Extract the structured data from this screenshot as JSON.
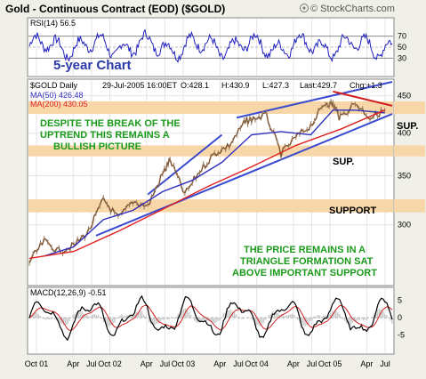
{
  "header": {
    "title": "Gold - Continuous Contract (EOD) ($GOLD)",
    "brand": "© StockCharts.com",
    "brand_icon": "bullhorn-icon"
  },
  "chart_data": [
    {
      "panel": "rsi",
      "type": "line",
      "label": "RSI(14) 56.5",
      "ylim": [
        0,
        100
      ],
      "ticks": [
        30,
        50,
        70
      ],
      "overbought": 70,
      "oversold": 30,
      "note": "5-year Chart",
      "last": 56.5,
      "color": "#2020c0"
    },
    {
      "panel": "price",
      "type": "line",
      "scale": "log",
      "info": {
        "symbol": "$GOLD Daily",
        "date": "29-Jul-2005 16:00ET",
        "open": "O:428.1",
        "high": "H:430.9",
        "low": "L:427.3",
        "last": "Last:429.7",
        "change": "Chg:+1.3"
      },
      "ma50_label": "MA(50) 426.48",
      "ma200_label": "MA(200) 430.05",
      "ticks": [
        300,
        350,
        400,
        450
      ],
      "ylim": [
        250,
        470
      ],
      "x_range": [
        "2001-07",
        "2005-08"
      ],
      "series": [
        {
          "name": "$GOLD",
          "color": "#7a5030",
          "points": [
            [
              "2001-07",
              267
            ],
            [
              "2001-09",
              285
            ],
            [
              "2001-11",
              276
            ],
            [
              "2002-01",
              281
            ],
            [
              "2002-03",
              294
            ],
            [
              "2002-05",
              325
            ],
            [
              "2002-07",
              306
            ],
            [
              "2002-09",
              323
            ],
            [
              "2002-11",
              318
            ],
            [
              "2003-01",
              352
            ],
            [
              "2003-02",
              368
            ],
            [
              "2003-04",
              330
            ],
            [
              "2003-06",
              355
            ],
            [
              "2003-08",
              375
            ],
            [
              "2003-10",
              385
            ],
            [
              "2003-12",
              413
            ],
            [
              "2004-01",
              418
            ],
            [
              "2004-03",
              423
            ],
            [
              "2004-05",
              375
            ],
            [
              "2004-07",
              395
            ],
            [
              "2004-09",
              410
            ],
            [
              "2004-11",
              440
            ],
            [
              "2004-12",
              438
            ],
            [
              "2005-01",
              420
            ],
            [
              "2005-03",
              440
            ],
            [
              "2005-05",
              420
            ],
            [
              "2005-07",
              429.7
            ]
          ]
        },
        {
          "name": "MA(50) 426.48",
          "color": "#3030c0",
          "points": [
            [
              "2001-09",
              272
            ],
            [
              "2002-01",
              280
            ],
            [
              "2002-05",
              305
            ],
            [
              "2002-09",
              314
            ],
            [
              "2003-01",
              333
            ],
            [
              "2003-05",
              345
            ],
            [
              "2003-09",
              365
            ],
            [
              "2004-01",
              398
            ],
            [
              "2004-05",
              402
            ],
            [
              "2004-09",
              398
            ],
            [
              "2004-12",
              430
            ],
            [
              "2005-03",
              430
            ],
            [
              "2005-07",
              426.48
            ]
          ]
        },
        {
          "name": "MA(200) 430.05",
          "color": "#e02020",
          "points": [
            [
              "2001-07",
              270
            ],
            [
              "2002-01",
              276
            ],
            [
              "2002-07",
              294
            ],
            [
              "2003-01",
              315
            ],
            [
              "2003-07",
              338
            ],
            [
              "2004-01",
              360
            ],
            [
              "2004-07",
              385
            ],
            [
              "2005-01",
              405
            ],
            [
              "2005-07",
              430.05
            ]
          ]
        }
      ],
      "annotations": [
        {
          "text": "DESPITE THE BREAK OF THE",
          "color": "#1a9a1a"
        },
        {
          "text": "UPTREND THIS REMAINS A",
          "color": "#1a9a1a"
        },
        {
          "text": "BULLISH PICTURE",
          "color": "#1a9a1a"
        },
        {
          "text": "SUP.",
          "color": "#000000"
        },
        {
          "text": "SUP.",
          "color": "#000000"
        },
        {
          "text": "SUPPORT",
          "color": "#000000"
        },
        {
          "text": "THE PRICE REMAINS IN A",
          "color": "#1a9a1a"
        },
        {
          "text": "TRIANGLE FORMATION SAT",
          "color": "#1a9a1a"
        },
        {
          "text": "ABOVE IMPORTANT SUPPORT",
          "color": "#1a9a1a"
        }
      ],
      "support_zones": [
        [
          425,
          442
        ],
        [
          372,
          385
        ],
        [
          312,
          325
        ]
      ],
      "support_color": "#f7d7a8"
    },
    {
      "panel": "macd",
      "type": "line",
      "label": "MACD(12,26,9) -0.51",
      "ylim": [
        -10,
        8
      ],
      "ticks": [
        -5,
        0,
        5
      ],
      "last": -0.51
    }
  ],
  "x_axis": {
    "labels": [
      "Oct 01",
      "Apr",
      "Jul",
      "Oct 02",
      "Apr",
      "Jul",
      "Oct 03",
      "Apr",
      "Jul",
      "Oct 04",
      "Apr",
      "Jul",
      "Oct 05",
      "Apr",
      "Jul"
    ]
  }
}
